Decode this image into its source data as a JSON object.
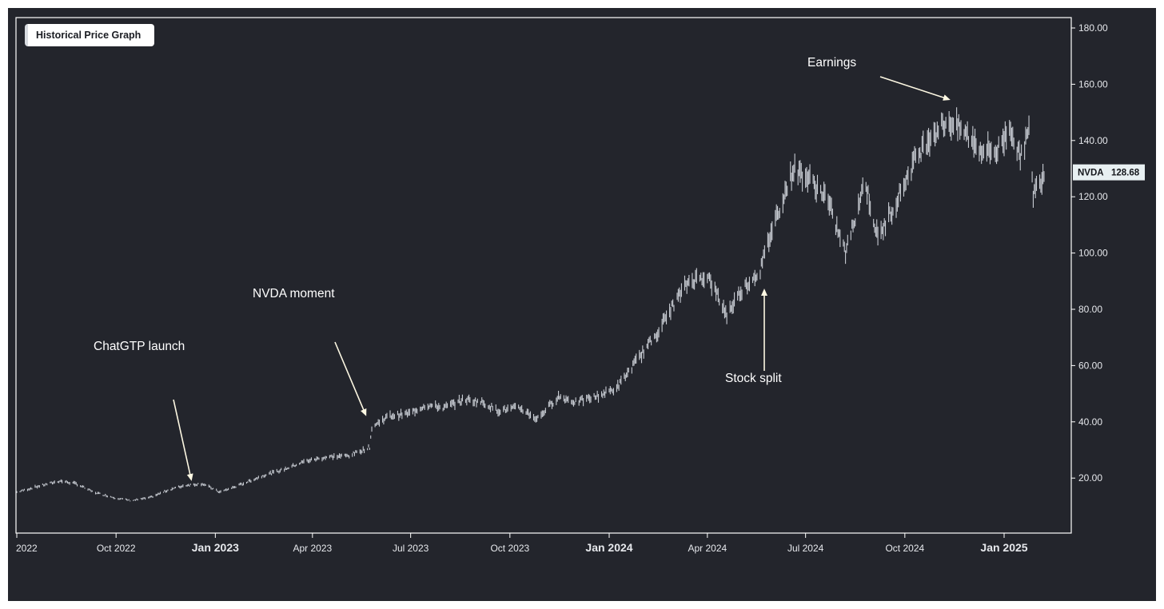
{
  "title_badge": "Historical Price Graph",
  "price_badge": {
    "ticker": "NVDA",
    "price": "128.68"
  },
  "colors": {
    "background": "#23252c",
    "plot_border": "#ffffff",
    "bars": "#c8ccd3",
    "annotation": "#fdf8e3",
    "text": "#ffffff"
  },
  "chart_data": {
    "type": "line",
    "title": "Historical Price Graph",
    "ylim": [
      0,
      180
    ],
    "y_axis_side": "right",
    "y_ticks": [
      "20.00",
      "40.00",
      "60.00",
      "80.00",
      "100.00",
      "120.00",
      "140.00",
      "160.00",
      "180.00"
    ],
    "x_ticks": [
      {
        "label": "2022",
        "date": "2022-07-01",
        "bold": false
      },
      {
        "label": "Oct 2022",
        "date": "2022-10-01",
        "bold": false
      },
      {
        "label": "Jan 2023",
        "date": "2023-01-01",
        "bold": true
      },
      {
        "label": "Apr 2023",
        "date": "2023-04-01",
        "bold": false
      },
      {
        "label": "Jul 2023",
        "date": "2023-07-01",
        "bold": false
      },
      {
        "label": "Oct 2023",
        "date": "2023-10-01",
        "bold": false
      },
      {
        "label": "Jan 2024",
        "date": "2024-01-01",
        "bold": true
      },
      {
        "label": "Apr 2024",
        "date": "2024-04-01",
        "bold": false
      },
      {
        "label": "Jul 2024",
        "date": "2024-07-01",
        "bold": false
      },
      {
        "label": "Oct 2024",
        "date": "2024-10-01",
        "bold": false
      },
      {
        "label": "Jan 2025",
        "date": "2025-01-01",
        "bold": true
      }
    ],
    "series": [
      {
        "name": "NVDA",
        "points": [
          [
            "2022-07-01",
            15
          ],
          [
            "2022-07-20",
            17
          ],
          [
            "2022-08-10",
            19
          ],
          [
            "2022-08-25",
            18
          ],
          [
            "2022-09-10",
            15
          ],
          [
            "2022-09-30",
            13
          ],
          [
            "2022-10-15",
            12
          ],
          [
            "2022-11-01",
            13
          ],
          [
            "2022-11-20",
            16
          ],
          [
            "2022-12-05",
            17.5
          ],
          [
            "2022-12-20",
            18
          ],
          [
            "2023-01-05",
            15
          ],
          [
            "2023-01-20",
            17
          ],
          [
            "2023-02-15",
            21
          ],
          [
            "2023-03-05",
            23
          ],
          [
            "2023-03-25",
            26
          ],
          [
            "2023-04-15",
            27.5
          ],
          [
            "2023-05-05",
            28
          ],
          [
            "2023-05-24",
            31
          ],
          [
            "2023-05-26",
            38
          ],
          [
            "2023-06-10",
            42
          ],
          [
            "2023-06-30",
            43
          ],
          [
            "2023-07-15",
            46
          ],
          [
            "2023-08-01",
            45
          ],
          [
            "2023-08-20",
            48
          ],
          [
            "2023-09-05",
            47
          ],
          [
            "2023-09-20",
            44
          ],
          [
            "2023-10-10",
            45
          ],
          [
            "2023-10-26",
            41
          ],
          [
            "2023-11-15",
            49
          ],
          [
            "2023-12-01",
            47
          ],
          [
            "2023-12-20",
            49
          ],
          [
            "2024-01-08",
            52
          ],
          [
            "2024-01-25",
            61
          ],
          [
            "2024-02-15",
            72
          ],
          [
            "2024-03-01",
            82
          ],
          [
            "2024-03-15",
            90
          ],
          [
            "2024-04-01",
            92
          ],
          [
            "2024-04-19",
            78
          ],
          [
            "2024-05-01",
            86
          ],
          [
            "2024-05-20",
            94
          ],
          [
            "2024-06-01",
            110
          ],
          [
            "2024-06-20",
            130
          ],
          [
            "2024-07-05",
            126
          ],
          [
            "2024-07-20",
            120
          ],
          [
            "2024-08-07",
            100
          ],
          [
            "2024-08-25",
            126
          ],
          [
            "2024-09-06",
            105
          ],
          [
            "2024-09-25",
            120
          ],
          [
            "2024-10-10",
            133
          ],
          [
            "2024-10-25",
            142
          ],
          [
            "2024-11-10",
            147
          ],
          [
            "2024-11-25",
            143
          ],
          [
            "2024-12-10",
            137
          ],
          [
            "2024-12-25",
            136
          ],
          [
            "2025-01-07",
            145
          ],
          [
            "2025-01-15",
            134
          ],
          [
            "2025-01-24",
            143
          ],
          [
            "2025-01-28",
            121
          ],
          [
            "2025-02-07",
            128.68
          ]
        ]
      }
    ],
    "annotations": [
      {
        "text": "ChatGTP launch",
        "date": "2022-11-30",
        "value": 18
      },
      {
        "text": "NVDA moment",
        "date": "2023-05-25",
        "value": 40
      },
      {
        "text": "Stock split",
        "date": "2024-06-10",
        "value": 90
      },
      {
        "text": "Earnings",
        "date": "2024-11-20",
        "value": 153
      }
    ],
    "grid": false,
    "legend": "none"
  }
}
